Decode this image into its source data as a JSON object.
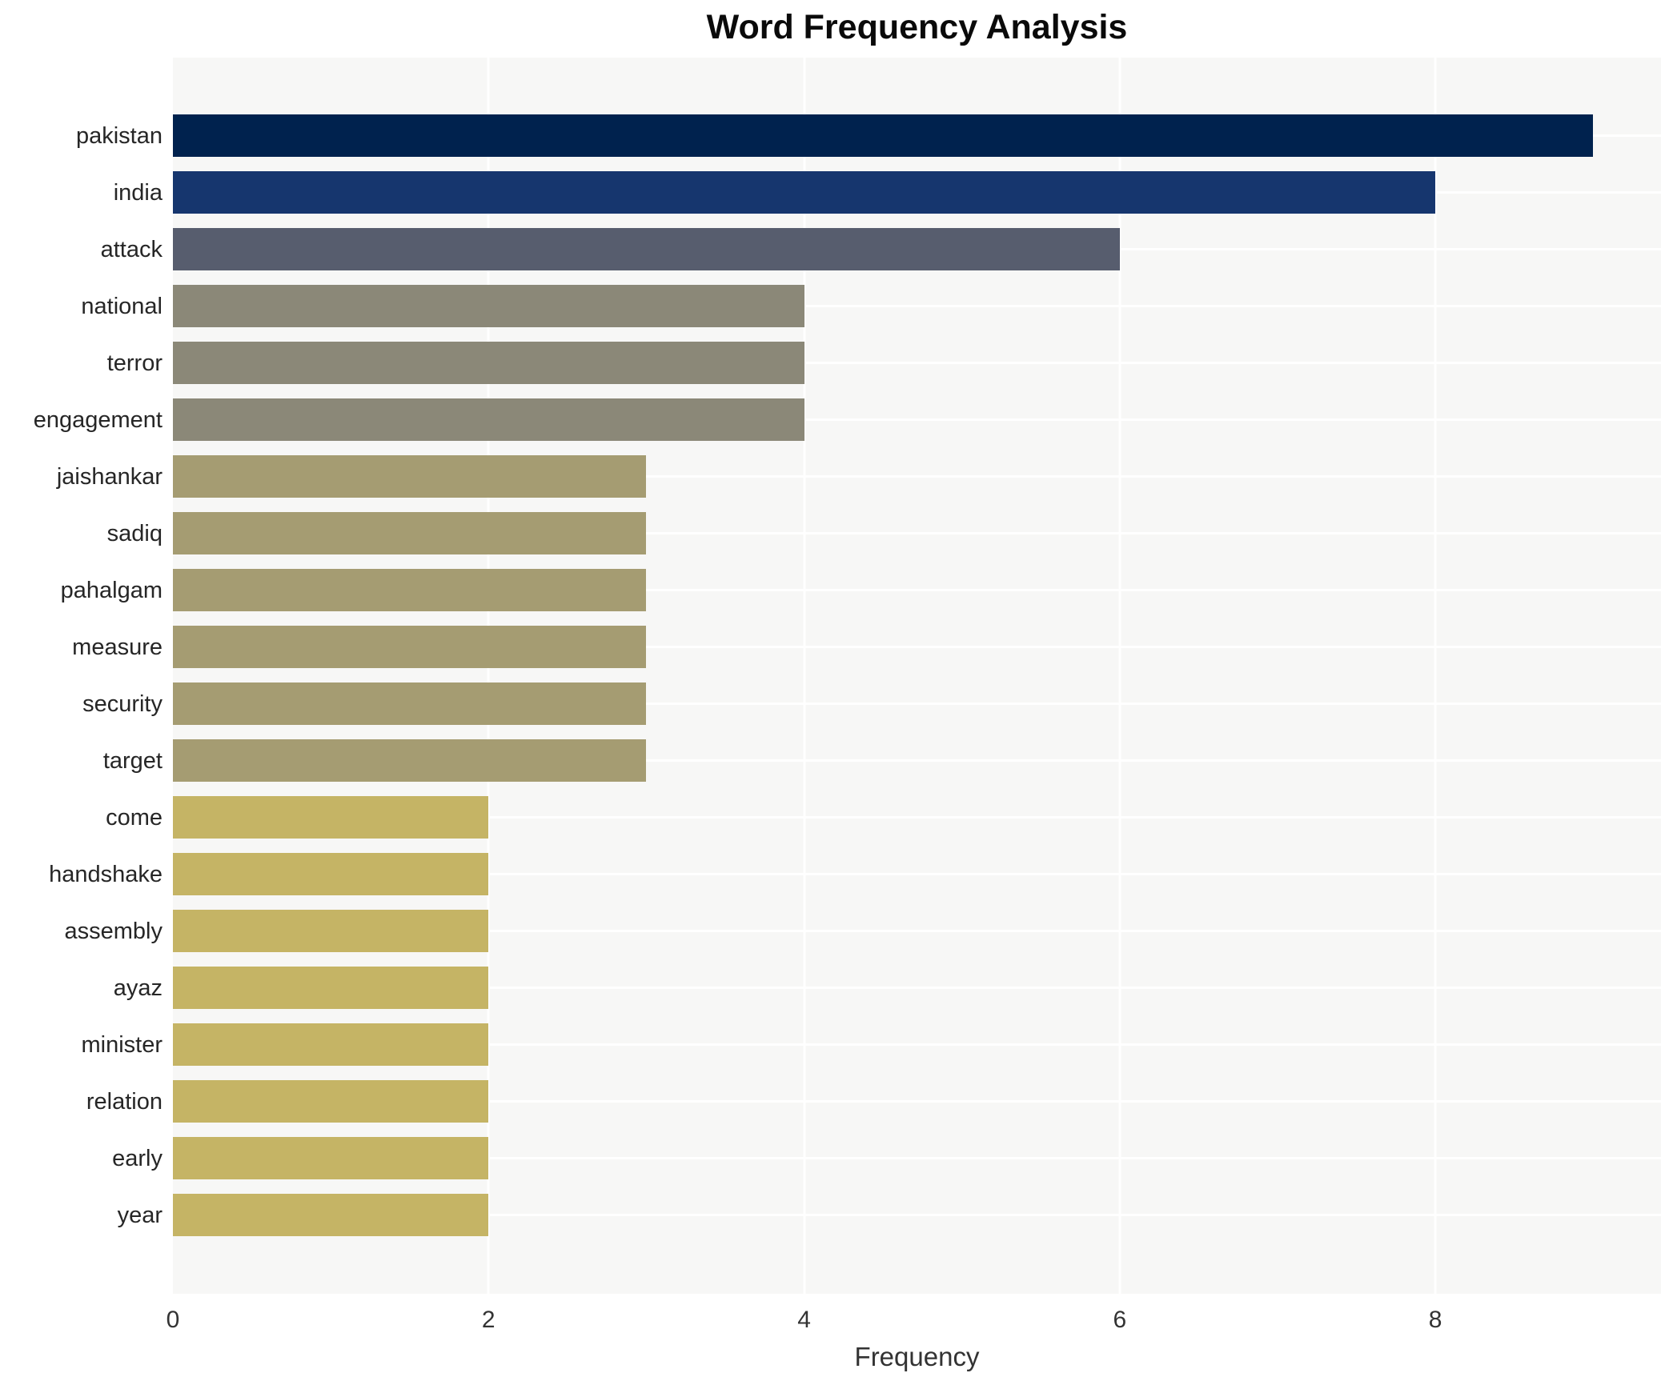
{
  "chart_data": {
    "type": "bar",
    "orientation": "horizontal",
    "title": "Word Frequency Analysis",
    "xlabel": "Frequency",
    "ylabel": "",
    "categories": [
      "pakistan",
      "india",
      "attack",
      "national",
      "terror",
      "engagement",
      "jaishankar",
      "sadiq",
      "pahalgam",
      "measure",
      "security",
      "target",
      "come",
      "handshake",
      "assembly",
      "ayaz",
      "minister",
      "relation",
      "early",
      "year"
    ],
    "values": [
      9,
      8,
      6,
      4,
      4,
      4,
      3,
      3,
      3,
      3,
      3,
      3,
      2,
      2,
      2,
      2,
      2,
      2,
      2,
      2
    ],
    "bar_colors": [
      "#00224e",
      "#16366e",
      "#575d6e",
      "#8b8878",
      "#8b8878",
      "#8b8878",
      "#a59c72",
      "#a59c72",
      "#a59c72",
      "#a59c72",
      "#a59c72",
      "#a59c72",
      "#c5b465",
      "#c5b465",
      "#c5b465",
      "#c5b465",
      "#c5b465",
      "#c5b465",
      "#c5b465",
      "#c5b465"
    ],
    "xlim": [
      0,
      9.43
    ],
    "xticks": [
      0,
      2,
      4,
      6,
      8
    ],
    "grid": true,
    "grid_color": "#ffffff",
    "plot_background": "#f7f7f6",
    "legend": false
  }
}
